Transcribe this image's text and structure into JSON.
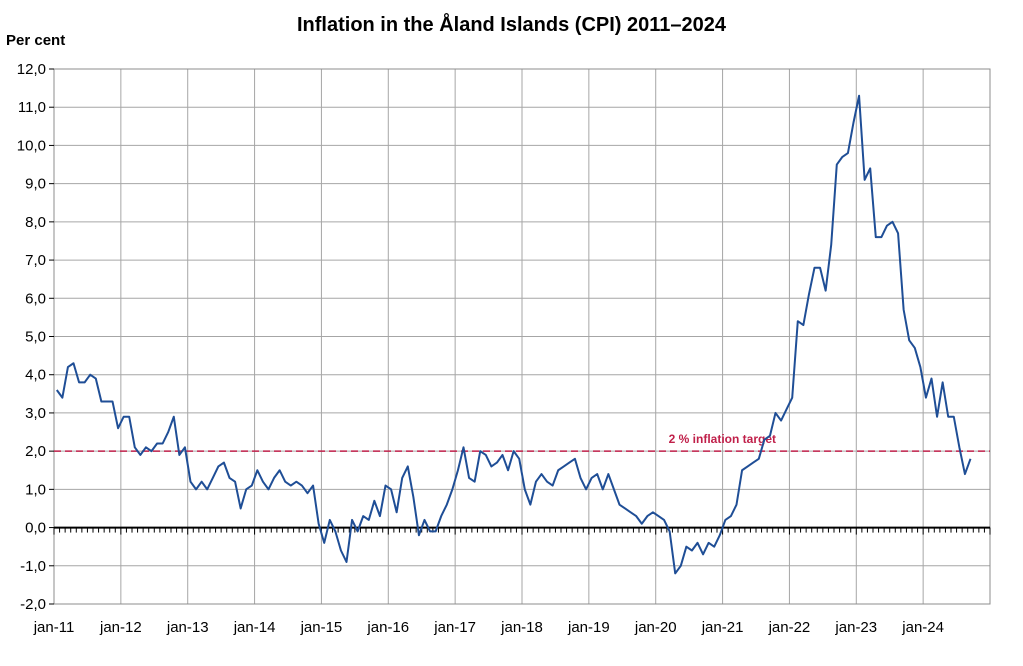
{
  "chart_data": {
    "type": "line",
    "title": "Inflation in the Åland Islands (CPI) 2011–2024",
    "ylabel": "Per cent",
    "xlabel": "",
    "ylim": [
      -2.0,
      12.0
    ],
    "yticks": [
      "-2,0",
      "-1,0",
      "0,0",
      "1,0",
      "2,0",
      "3,0",
      "4,0",
      "5,0",
      "6,0",
      "7,0",
      "8,0",
      "9,0",
      "10,0",
      "11,0",
      "12,0"
    ],
    "xticks": [
      "jan-11",
      "jan-12",
      "jan-13",
      "jan-14",
      "jan-15",
      "jan-16",
      "jan-17",
      "jan-18",
      "jan-19",
      "jan-20",
      "jan-21",
      "jan-22",
      "jan-23",
      "jan-24"
    ],
    "grid": true,
    "colors": {
      "series": "#1f4e96",
      "target": "#c0204a",
      "grid": "#a6a6a6"
    },
    "target": {
      "value": 2.0,
      "label": "2 % inflation target"
    },
    "series": [
      {
        "values": [
          3.6,
          3.4,
          4.2,
          4.3,
          3.8,
          3.8,
          4.0,
          3.9,
          3.3,
          3.3,
          3.3,
          2.6,
          2.9,
          2.9,
          2.1,
          1.9,
          2.1,
          2.0,
          2.2,
          2.2,
          2.5,
          2.9,
          1.9,
          2.1,
          1.2,
          1.0,
          1.2,
          1.0,
          1.3,
          1.6,
          1.7,
          1.3,
          1.2,
          0.5,
          1.0,
          1.1,
          1.5,
          1.2,
          1.0,
          1.3,
          1.5,
          1.2,
          1.1,
          1.2,
          1.1,
          0.9,
          1.1,
          0.1,
          -0.4,
          0.2,
          -0.1,
          -0.6,
          -0.9,
          0.2,
          -0.1,
          0.3,
          0.2,
          0.7,
          0.3,
          1.1,
          1.0,
          0.4,
          1.3,
          1.6,
          0.8,
          -0.2,
          0.2,
          -0.1,
          -0.1,
          0.3,
          0.6,
          1.0,
          1.5,
          2.1,
          1.3,
          1.2,
          2.0,
          1.9,
          1.6,
          1.7,
          1.9,
          1.5,
          2.0,
          1.8,
          1.0,
          0.6,
          1.2,
          1.4,
          1.2,
          1.1,
          1.5,
          1.6,
          1.7,
          1.8,
          1.3,
          1.0,
          1.3,
          1.4,
          1.0,
          1.4,
          1.0,
          0.6,
          0.5,
          0.4,
          0.3,
          0.1,
          0.3,
          0.4,
          0.3,
          0.2,
          -0.1,
          -1.2,
          -1.0,
          -0.5,
          -0.6,
          -0.4,
          -0.7,
          -0.4,
          -0.5,
          -0.2,
          0.2,
          0.3,
          0.6,
          1.5,
          1.6,
          1.7,
          1.8,
          2.3,
          2.4,
          3.0,
          2.8,
          3.1,
          3.4,
          5.4,
          5.3,
          6.1,
          6.8,
          6.8,
          6.2,
          7.4,
          9.5,
          9.7,
          9.8,
          10.6,
          11.3,
          9.1,
          9.4,
          7.6,
          7.6,
          7.9,
          8.0,
          7.7,
          5.7,
          4.9,
          4.7,
          4.2,
          3.4,
          3.9,
          2.9,
          3.8,
          2.9,
          2.9,
          2.1,
          1.4,
          1.8
        ]
      }
    ]
  }
}
